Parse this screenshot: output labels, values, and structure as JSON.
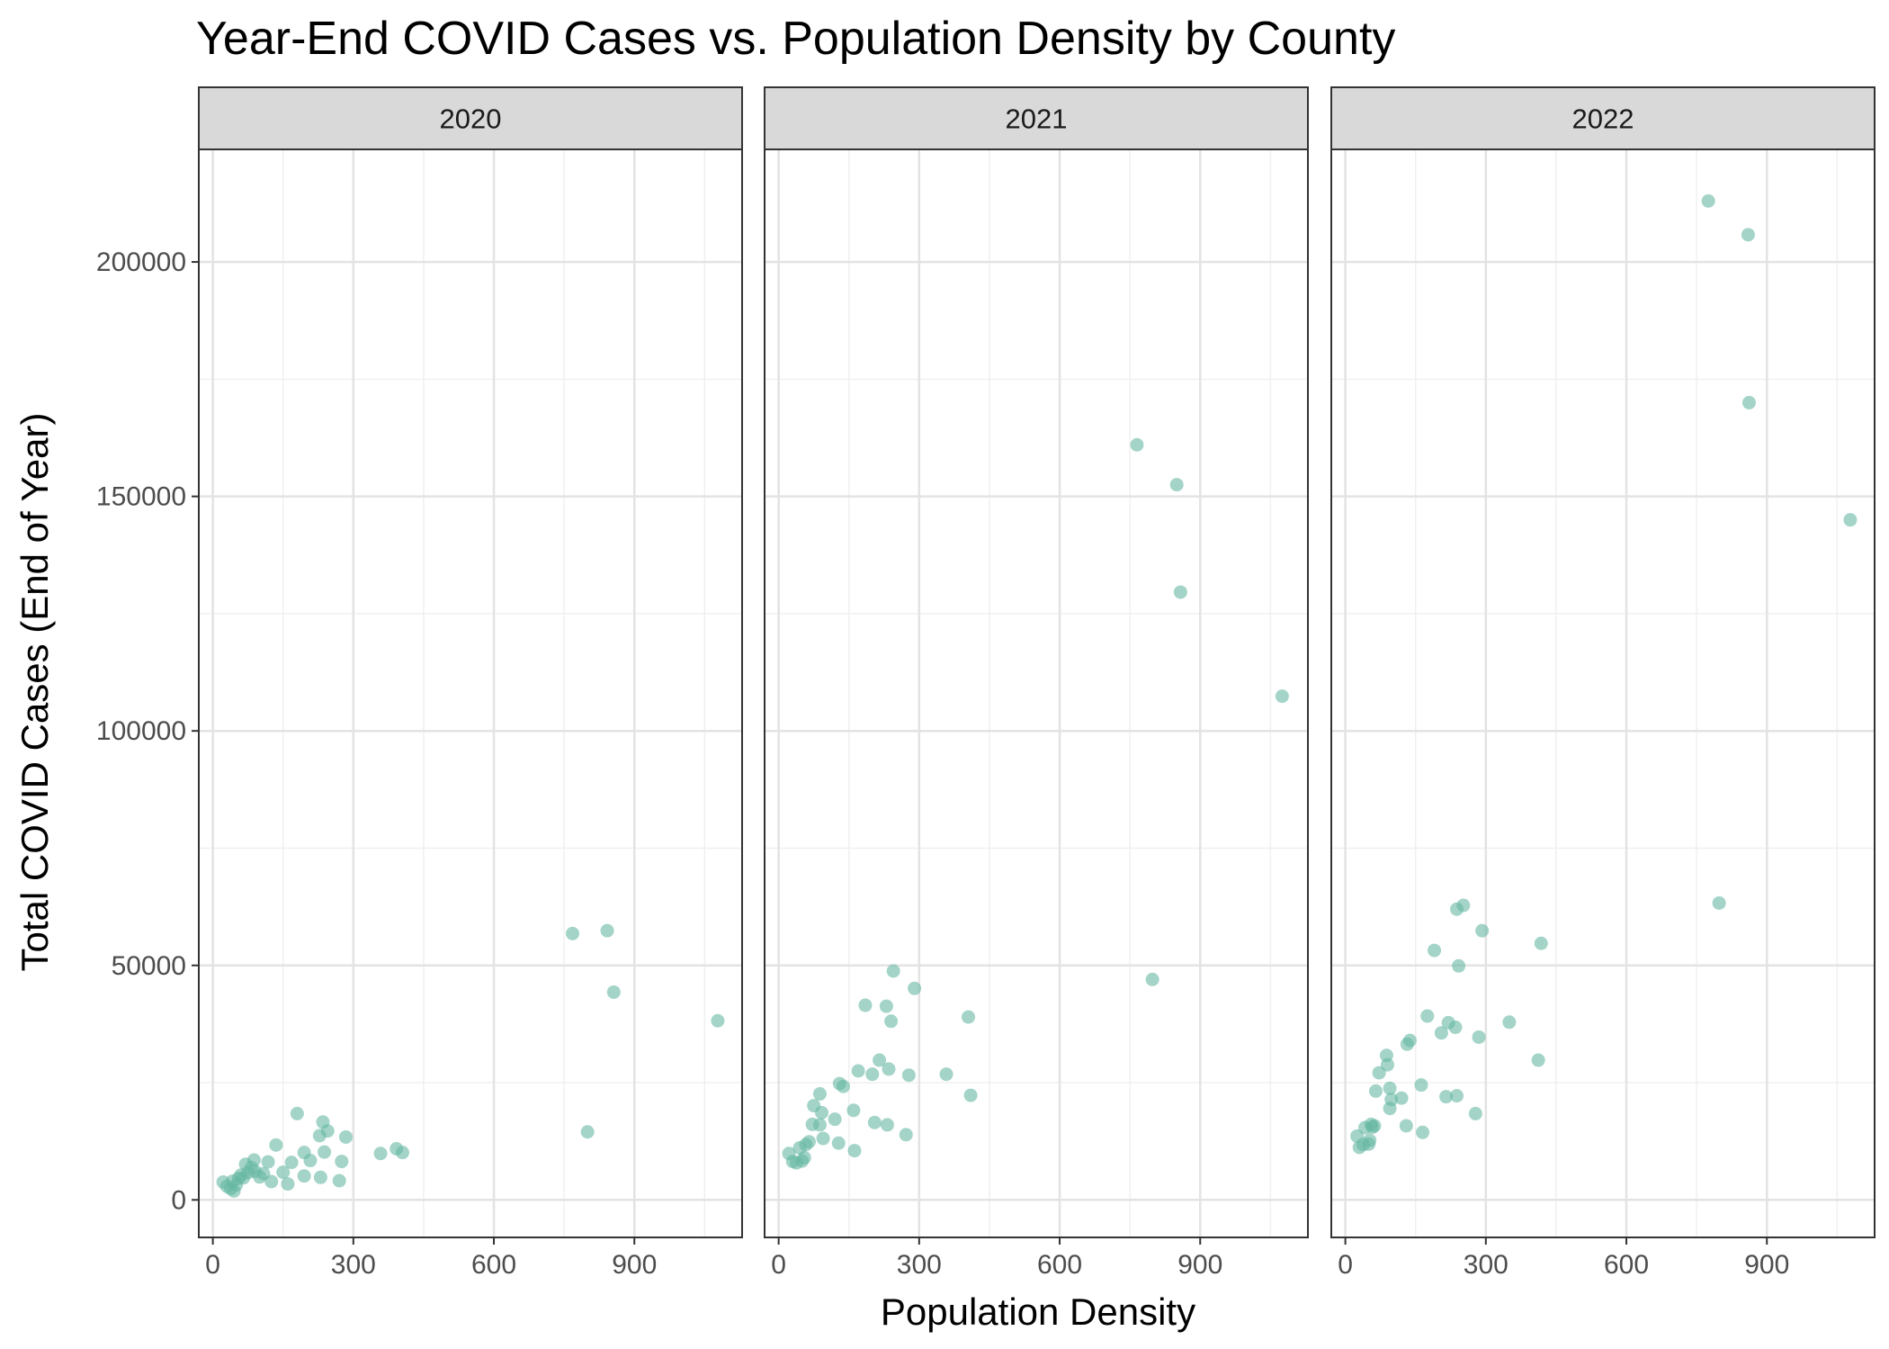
{
  "chart_data": {
    "type": "scatter",
    "title": "Year-End COVID Cases vs. Population Density by County",
    "xlabel": "Population Density",
    "ylabel": "Total COVID Cases (End of Year)",
    "xlim": [
      -30,
      1130
    ],
    "ylim": [
      -8000,
      224000
    ],
    "x_ticks": [
      0,
      300,
      600,
      900
    ],
    "x_tick_labels": [
      "0",
      "300",
      "600",
      "900"
    ],
    "y_ticks": [
      0,
      50000,
      100000,
      150000,
      200000
    ],
    "y_tick_labels": [
      "0",
      "50000",
      "100000",
      "150000",
      "200000"
    ],
    "grid": true,
    "point_color": "#66b8a1",
    "panels": [
      {
        "label": "2020",
        "points": [
          [
            22,
            3800
          ],
          [
            30,
            2900
          ],
          [
            38,
            2400
          ],
          [
            45,
            1900
          ],
          [
            42,
            4000
          ],
          [
            50,
            3200
          ],
          [
            55,
            4600
          ],
          [
            60,
            5300
          ],
          [
            65,
            4700
          ],
          [
            70,
            7600
          ],
          [
            75,
            5800
          ],
          [
            82,
            6900
          ],
          [
            88,
            8500
          ],
          [
            90,
            6100
          ],
          [
            100,
            4900
          ],
          [
            108,
            5600
          ],
          [
            118,
            8100
          ],
          [
            125,
            3900
          ],
          [
            135,
            11700
          ],
          [
            150,
            5900
          ],
          [
            160,
            3400
          ],
          [
            168,
            8000
          ],
          [
            180,
            18400
          ],
          [
            195,
            5100
          ],
          [
            195,
            10100
          ],
          [
            208,
            8400
          ],
          [
            228,
            13700
          ],
          [
            230,
            4800
          ],
          [
            235,
            16600
          ],
          [
            238,
            10200
          ],
          [
            245,
            14700
          ],
          [
            270,
            4100
          ],
          [
            275,
            8200
          ],
          [
            284,
            13400
          ],
          [
            358,
            9900
          ],
          [
            392,
            10900
          ],
          [
            405,
            10100
          ],
          [
            768,
            56800
          ],
          [
            800,
            14500
          ],
          [
            842,
            57400
          ],
          [
            856,
            44300
          ],
          [
            1078,
            38200
          ]
        ]
      },
      {
        "label": "2021",
        "points": [
          [
            22,
            9900
          ],
          [
            30,
            8200
          ],
          [
            38,
            7900
          ],
          [
            45,
            11100
          ],
          [
            50,
            8300
          ],
          [
            55,
            9000
          ],
          [
            58,
            11800
          ],
          [
            65,
            12400
          ],
          [
            72,
            16100
          ],
          [
            75,
            20100
          ],
          [
            88,
            22600
          ],
          [
            88,
            16000
          ],
          [
            92,
            18600
          ],
          [
            95,
            13100
          ],
          [
            120,
            17200
          ],
          [
            128,
            12100
          ],
          [
            130,
            24800
          ],
          [
            138,
            24200
          ],
          [
            160,
            19100
          ],
          [
            162,
            10500
          ],
          [
            170,
            27500
          ],
          [
            185,
            41500
          ],
          [
            200,
            26800
          ],
          [
            205,
            16500
          ],
          [
            215,
            29800
          ],
          [
            230,
            41300
          ],
          [
            232,
            16000
          ],
          [
            235,
            27900
          ],
          [
            240,
            38100
          ],
          [
            245,
            48800
          ],
          [
            272,
            13900
          ],
          [
            278,
            26600
          ],
          [
            290,
            45100
          ],
          [
            358,
            26800
          ],
          [
            405,
            39000
          ],
          [
            410,
            22300
          ],
          [
            765,
            161000
          ],
          [
            798,
            47000
          ],
          [
            850,
            152500
          ],
          [
            858,
            129600
          ],
          [
            1075,
            107400
          ]
        ]
      },
      {
        "label": "2022",
        "points": [
          [
            25,
            13600
          ],
          [
            30,
            11200
          ],
          [
            38,
            11800
          ],
          [
            42,
            15400
          ],
          [
            50,
            11900
          ],
          [
            52,
            12700
          ],
          [
            55,
            16100
          ],
          [
            58,
            15500
          ],
          [
            62,
            15800
          ],
          [
            65,
            23200
          ],
          [
            72,
            27100
          ],
          [
            88,
            30800
          ],
          [
            90,
            28800
          ],
          [
            95,
            19500
          ],
          [
            95,
            23800
          ],
          [
            98,
            21400
          ],
          [
            120,
            21700
          ],
          [
            130,
            15800
          ],
          [
            132,
            33200
          ],
          [
            138,
            34000
          ],
          [
            162,
            24500
          ],
          [
            165,
            14400
          ],
          [
            175,
            39200
          ],
          [
            190,
            53200
          ],
          [
            205,
            35600
          ],
          [
            215,
            22000
          ],
          [
            220,
            37800
          ],
          [
            235,
            36800
          ],
          [
            238,
            22200
          ],
          [
            238,
            62000
          ],
          [
            242,
            49900
          ],
          [
            252,
            62800
          ],
          [
            278,
            18400
          ],
          [
            285,
            34700
          ],
          [
            292,
            57400
          ],
          [
            350,
            37900
          ],
          [
            412,
            29800
          ],
          [
            418,
            54700
          ],
          [
            775,
            213000
          ],
          [
            798,
            63300
          ],
          [
            860,
            205800
          ],
          [
            862,
            170000
          ],
          [
            1078,
            145000
          ]
        ]
      }
    ]
  }
}
